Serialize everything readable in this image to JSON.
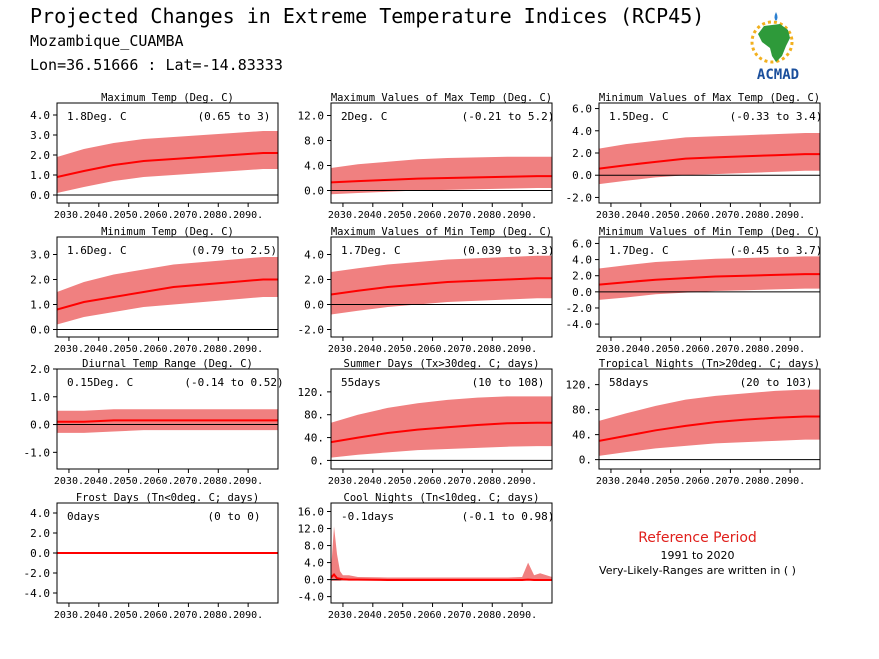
{
  "header": {
    "title": "Projected Changes in Extreme Temperature Indices (RCP45)",
    "location": "Mozambique_CUAMBA",
    "coords": "Lon=36.51666 : Lat=-14.83333"
  },
  "logo": {
    "text": "ACMAD",
    "icon": "africa-map-logo-icon",
    "colors": {
      "text": "#1b4f9c",
      "africa": "#2e9a3a",
      "sun": "#f2b01e",
      "drop": "#2b7fd0"
    }
  },
  "reference": {
    "title": "Reference Period",
    "years": "1991 to 2020",
    "note": "Very-Likely-Ranges are written in ( )"
  },
  "x_tick_labels": [
    "2030.",
    "2040.",
    "2050.",
    "2060.",
    "2070.",
    "2080.",
    "2090."
  ],
  "colors": {
    "band": "#f08080",
    "line": "#ff0000",
    "zero": "#000000"
  },
  "chart_data": [
    {
      "type": "area",
      "title": "Maximum Temp (Deg. C)",
      "mean_label": "1.8Deg. C",
      "range_label": "(0.65 to 3)",
      "ylim": [
        -0.4,
        4.6
      ],
      "yticks": [
        4.0,
        3.0,
        2.0,
        1.0,
        0.0
      ],
      "ytick_labels": [
        "4.0",
        "3.0",
        "2.0",
        "1.0",
        "0.0"
      ],
      "x": [
        2026,
        2035,
        2045,
        2055,
        2065,
        2075,
        2085,
        2095,
        2100
      ],
      "median": [
        0.9,
        1.2,
        1.5,
        1.7,
        1.8,
        1.9,
        2.0,
        2.1,
        2.1
      ],
      "lower": [
        0.1,
        0.4,
        0.7,
        0.9,
        1.0,
        1.1,
        1.2,
        1.3,
        1.3
      ],
      "upper": [
        1.9,
        2.3,
        2.6,
        2.8,
        2.9,
        3.0,
        3.1,
        3.2,
        3.2
      ]
    },
    {
      "type": "area",
      "title": "Maximum Values of Max Temp (Deg. C)",
      "mean_label": "2Deg. C",
      "range_label": "(-0.21 to 5.2)",
      "ylim": [
        -2.0,
        14.0
      ],
      "yticks": [
        12.0,
        8.0,
        4.0,
        0.0
      ],
      "ytick_labels": [
        "12.0",
        "8.0",
        "4.0",
        "0.0"
      ],
      "x": [
        2026,
        2035,
        2045,
        2055,
        2065,
        2075,
        2085,
        2095,
        2100
      ],
      "median": [
        1.3,
        1.5,
        1.7,
        1.9,
        2.0,
        2.1,
        2.2,
        2.3,
        2.3
      ],
      "lower": [
        -0.6,
        -0.4,
        -0.2,
        0.0,
        0.1,
        0.2,
        0.3,
        0.4,
        0.4
      ],
      "upper": [
        3.6,
        4.2,
        4.6,
        5.0,
        5.2,
        5.3,
        5.4,
        5.4,
        5.4
      ]
    },
    {
      "type": "area",
      "title": "Minimum Values of Max Temp (Deg. C)",
      "mean_label": "1.5Deg. C",
      "range_label": "(-0.33 to 3.4)",
      "ylim": [
        -2.5,
        6.5
      ],
      "yticks": [
        6.0,
        4.0,
        2.0,
        0.0,
        -2.0
      ],
      "ytick_labels": [
        "6.0",
        "4.0",
        "2.0",
        "0.0",
        "-2.0"
      ],
      "x": [
        2026,
        2035,
        2045,
        2055,
        2065,
        2075,
        2085,
        2095,
        2100
      ],
      "median": [
        0.6,
        0.9,
        1.2,
        1.5,
        1.6,
        1.7,
        1.8,
        1.9,
        1.9
      ],
      "lower": [
        -0.8,
        -0.5,
        -0.2,
        0.0,
        0.1,
        0.2,
        0.3,
        0.4,
        0.4
      ],
      "upper": [
        2.4,
        2.8,
        3.1,
        3.4,
        3.5,
        3.6,
        3.7,
        3.8,
        3.8
      ]
    },
    {
      "type": "area",
      "title": "Minimum Temp (Deg. C)",
      "mean_label": "1.6Deg. C",
      "range_label": "(0.79 to 2.5)",
      "ylim": [
        -0.3,
        3.7
      ],
      "yticks": [
        3.0,
        2.0,
        1.0,
        0.0
      ],
      "ytick_labels": [
        "3.0",
        "2.0",
        "1.0",
        "0.0"
      ],
      "x": [
        2026,
        2035,
        2045,
        2055,
        2065,
        2075,
        2085,
        2095,
        2100
      ],
      "median": [
        0.8,
        1.1,
        1.3,
        1.5,
        1.7,
        1.8,
        1.9,
        2.0,
        2.0
      ],
      "lower": [
        0.2,
        0.5,
        0.7,
        0.9,
        1.0,
        1.1,
        1.2,
        1.3,
        1.3
      ],
      "upper": [
        1.5,
        1.9,
        2.2,
        2.4,
        2.6,
        2.7,
        2.8,
        2.9,
        2.9
      ]
    },
    {
      "type": "area",
      "title": "Maximum Values of Min Temp (Deg. C)",
      "mean_label": "1.7Deg. C",
      "range_label": "(0.039 to 3.3)",
      "ylim": [
        -2.6,
        5.4
      ],
      "yticks": [
        4.0,
        2.0,
        0.0,
        -2.0
      ],
      "ytick_labels": [
        "4.0",
        "2.0",
        "0.0",
        "-2.0"
      ],
      "x": [
        2026,
        2035,
        2045,
        2055,
        2065,
        2075,
        2085,
        2095,
        2100
      ],
      "median": [
        0.8,
        1.1,
        1.4,
        1.6,
        1.8,
        1.9,
        2.0,
        2.1,
        2.1
      ],
      "lower": [
        -0.8,
        -0.5,
        -0.2,
        0.0,
        0.2,
        0.3,
        0.4,
        0.5,
        0.5
      ],
      "upper": [
        2.6,
        2.9,
        3.2,
        3.4,
        3.6,
        3.7,
        3.8,
        3.9,
        3.9
      ]
    },
    {
      "type": "area",
      "title": "Minimum Values of Min Temp (Deg. C)",
      "mean_label": "1.7Deg. C",
      "range_label": "(-0.45 to 3.7)",
      "ylim": [
        -5.6,
        6.8
      ],
      "yticks": [
        6.0,
        4.0,
        2.0,
        0.0,
        -2.0,
        -4.0
      ],
      "ytick_labels": [
        "6.0",
        "4.0",
        "2.0",
        "0.0",
        "-2.0",
        "-4.0"
      ],
      "x": [
        2026,
        2035,
        2045,
        2055,
        2065,
        2075,
        2085,
        2095,
        2100
      ],
      "median": [
        0.9,
        1.2,
        1.5,
        1.7,
        1.9,
        2.0,
        2.1,
        2.2,
        2.2
      ],
      "lower": [
        -1.0,
        -0.7,
        -0.3,
        -0.1,
        0.1,
        0.2,
        0.3,
        0.4,
        0.4
      ],
      "upper": [
        2.9,
        3.3,
        3.7,
        3.9,
        4.1,
        4.2,
        4.3,
        4.4,
        4.4
      ]
    },
    {
      "type": "area",
      "title": "Diurnal Temp Range (Deg. C)",
      "mean_label": "0.15Deg. C",
      "range_label": "(-0.14 to 0.52)",
      "ylim": [
        -1.6,
        2.0
      ],
      "yticks": [
        2.0,
        1.0,
        0.0,
        -1.0
      ],
      "ytick_labels": [
        "2.0",
        "1.0",
        "0.0",
        "-1.0"
      ],
      "x": [
        2026,
        2035,
        2045,
        2055,
        2065,
        2075,
        2085,
        2095,
        2100
      ],
      "median": [
        0.1,
        0.1,
        0.15,
        0.15,
        0.15,
        0.15,
        0.15,
        0.15,
        0.15
      ],
      "lower": [
        -0.3,
        -0.3,
        -0.25,
        -0.2,
        -0.2,
        -0.2,
        -0.2,
        -0.2,
        -0.2
      ],
      "upper": [
        0.5,
        0.5,
        0.55,
        0.55,
        0.55,
        0.55,
        0.55,
        0.55,
        0.55
      ]
    },
    {
      "type": "area",
      "title": "Summer Days (Tx>30deg. C; days)",
      "mean_label": "55days",
      "range_label": "(10 to 108)",
      "ylim": [
        -15,
        160
      ],
      "yticks": [
        120,
        80,
        40,
        0
      ],
      "ytick_labels": [
        "120.",
        "80.",
        "40.",
        "0."
      ],
      "x": [
        2026,
        2035,
        2045,
        2055,
        2065,
        2075,
        2085,
        2095,
        2100
      ],
      "median": [
        32,
        40,
        48,
        54,
        58,
        62,
        65,
        66,
        66
      ],
      "lower": [
        5,
        10,
        14,
        18,
        20,
        22,
        24,
        25,
        25
      ],
      "upper": [
        66,
        80,
        92,
        100,
        106,
        110,
        112,
        112,
        112
      ]
    },
    {
      "type": "area",
      "title": "Tropical Nights (Tn>20deg. C; days)",
      "mean_label": "58days",
      "range_label": "(20 to 103)",
      "ylim": [
        -15,
        145
      ],
      "yticks": [
        120,
        80,
        40,
        0
      ],
      "ytick_labels": [
        "120.",
        "80.",
        "40.",
        "0."
      ],
      "x": [
        2026,
        2035,
        2045,
        2055,
        2065,
        2075,
        2085,
        2095,
        2100
      ],
      "median": [
        30,
        38,
        47,
        54,
        60,
        64,
        67,
        69,
        69
      ],
      "lower": [
        6,
        12,
        18,
        22,
        26,
        28,
        30,
        32,
        32
      ],
      "upper": [
        62,
        74,
        86,
        96,
        102,
        106,
        110,
        112,
        112
      ]
    },
    {
      "type": "area",
      "title": "Frost Days (Tn<0deg. C; days)",
      "mean_label": "0days",
      "range_label": "(0 to 0)",
      "ylim": [
        -5.0,
        5.0
      ],
      "yticks": [
        4.0,
        2.0,
        0.0,
        -2.0,
        -4.0
      ],
      "ytick_labels": [
        "4.0",
        "2.0",
        "0.0",
        "-2.0",
        "-4.0"
      ],
      "x": [
        2026,
        2100
      ],
      "median": [
        0,
        0
      ],
      "lower": [
        0,
        0
      ],
      "upper": [
        0,
        0
      ]
    },
    {
      "type": "area",
      "title": "Cool Nights (Tn<10deg. C; days)",
      "mean_label": "-0.1days",
      "range_label": "(-0.1 to 0.98)",
      "ylim": [
        -5.5,
        18.0
      ],
      "yticks": [
        16.0,
        12.0,
        8.0,
        4.0,
        0.0,
        -4.0
      ],
      "ytick_labels": [
        "16.0",
        "12.0",
        "8.0",
        "4.0",
        "0.0",
        "-4.0"
      ],
      "x": [
        2026,
        2027,
        2028,
        2029,
        2030,
        2032,
        2035,
        2045,
        2055,
        2065,
        2075,
        2085,
        2090,
        2092,
        2094,
        2096,
        2100
      ],
      "median": [
        0.5,
        1.2,
        0.3,
        0.2,
        0.1,
        0.0,
        0.0,
        -0.1,
        -0.1,
        -0.1,
        -0.1,
        -0.1,
        -0.1,
        0.0,
        -0.1,
        -0.1,
        -0.1
      ],
      "lower": [
        -0.3,
        -0.3,
        -0.3,
        -0.3,
        -0.2,
        -0.2,
        -0.2,
        -0.2,
        -0.2,
        -0.2,
        -0.2,
        -0.2,
        -0.2,
        -0.2,
        -0.2,
        -0.2,
        -0.2
      ],
      "upper": [
        2.0,
        12.5,
        6.0,
        2.0,
        1.0,
        1.0,
        0.6,
        0.5,
        0.5,
        0.5,
        0.5,
        0.5,
        0.6,
        4.0,
        1.0,
        1.5,
        0.6
      ]
    }
  ]
}
